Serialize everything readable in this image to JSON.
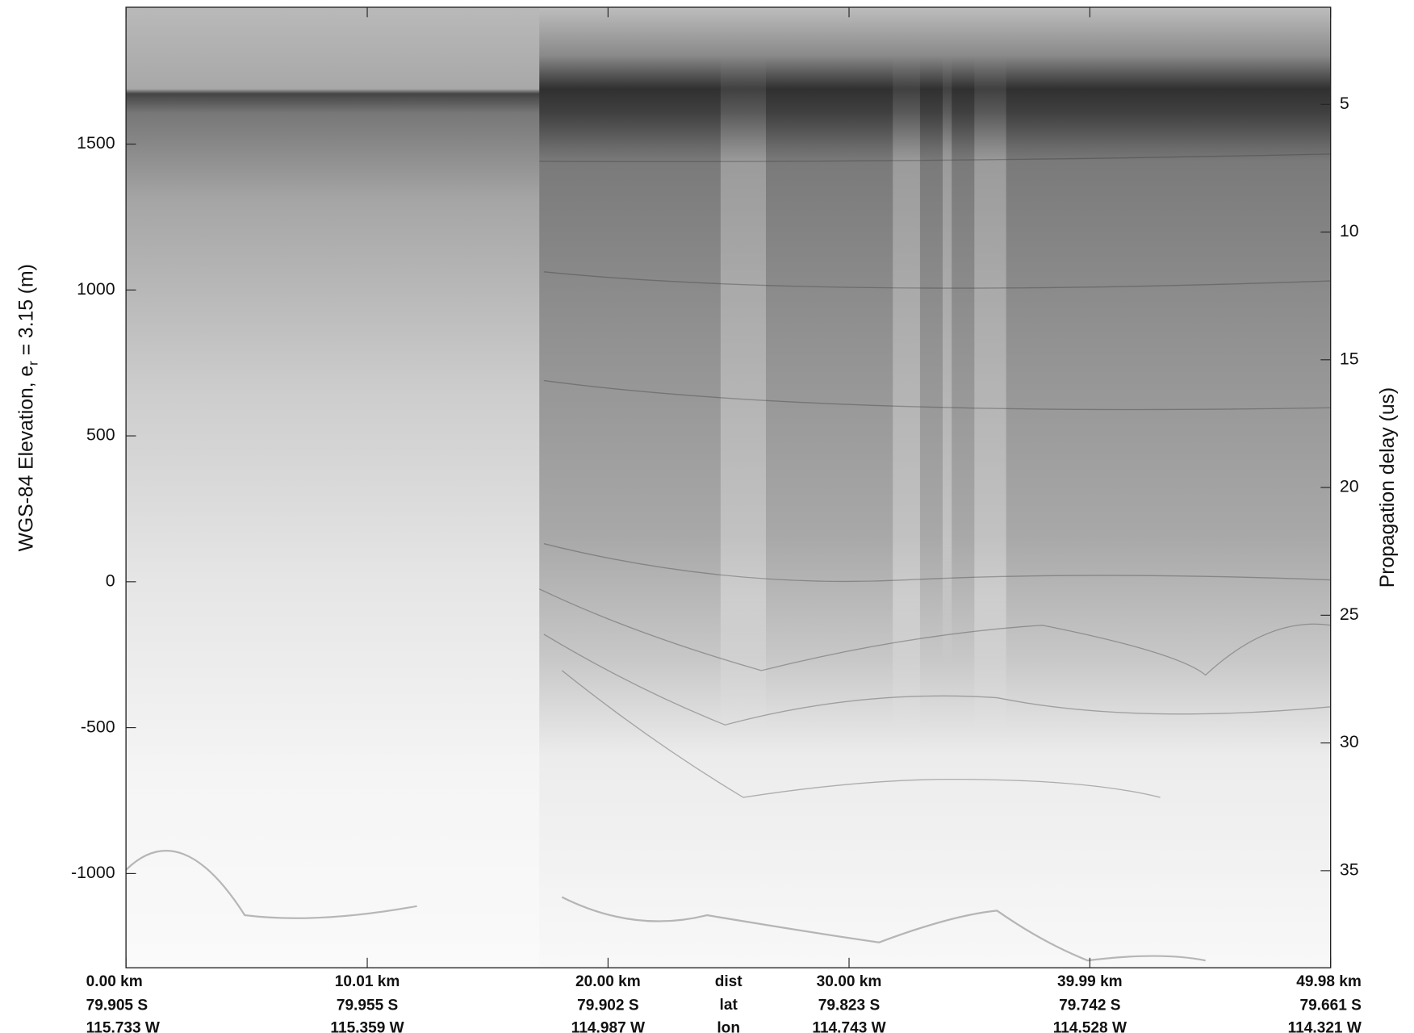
{
  "chart_data": {
    "type": "radargram",
    "y_label": {
      "text": "WGS-84 Elevation, e",
      "subscript": "r",
      "suffix": " = 3.15 (m)"
    },
    "y2_label": "Propagation delay (us)",
    "xlim": [
      0,
      49.98
    ],
    "xticks": [
      {
        "value": 0,
        "label": "0.00 km"
      },
      {
        "value": 10.01,
        "label": "10.01 km"
      },
      {
        "value": 20.0,
        "label": "20.00 km"
      },
      {
        "value": 30.0,
        "label": "30.00 km"
      },
      {
        "value": 39.99,
        "label": "39.99 km"
      },
      {
        "value": 49.98,
        "label": "49.98 km"
      }
    ],
    "lat_labels": [
      "79.905 S",
      "79.955 S",
      "79.902 S",
      "79.823 S",
      "79.742 S",
      "79.661 S"
    ],
    "lon_labels": [
      "115.733 W",
      "115.359 W",
      "114.987 W",
      "114.743 W",
      "114.528 W",
      "114.321 W"
    ],
    "row_names": [
      "dist",
      "lat",
      "lon"
    ],
    "ylim": [
      -1323,
      1969
    ],
    "yticks": [
      -1000,
      -500,
      0,
      500,
      1000,
      1500
    ],
    "y2lim": [
      1.2,
      38.8
    ],
    "y2ticks": [
      5,
      10,
      15,
      20,
      25,
      30,
      35
    ],
    "colormap": "gray"
  }
}
